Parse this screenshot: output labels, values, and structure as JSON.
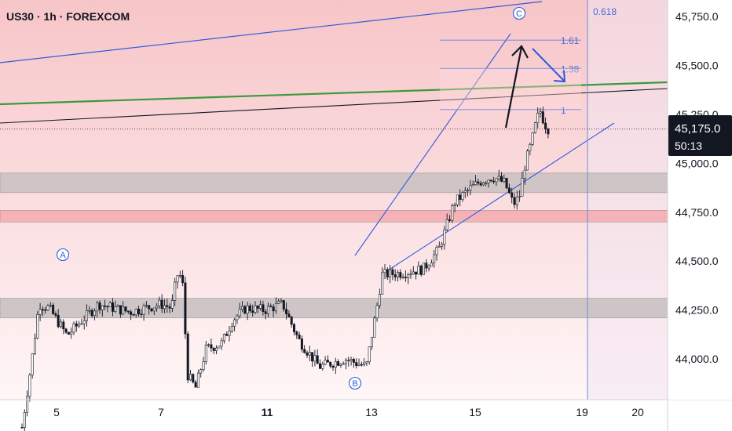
{
  "header": {
    "title": "US30 · 1h · FOREXCOM"
  },
  "chart_data": {
    "type": "candlestick",
    "symbol": "US30",
    "timeframe": "1h",
    "exchange": "FOREXCOM",
    "x_ticks": [
      {
        "day": "5",
        "bold": false
      },
      {
        "day": "7",
        "bold": false
      },
      {
        "day": "11",
        "bold": true
      },
      {
        "day": "13",
        "bold": false
      },
      {
        "day": "15",
        "bold": false
      },
      {
        "day": "19",
        "bold": false
      },
      {
        "day": "20",
        "bold": false
      }
    ],
    "y_ticks": [
      "45,750.0",
      "45,500.0",
      "45,250.0",
      "45,000.0",
      "44,750.0",
      "44,500.0",
      "44,250.0",
      "44,000.0"
    ],
    "ylim": [
      43700,
      45950
    ],
    "current_price": {
      "value": "45,175.0",
      "countdown": "50:13",
      "price": 45175
    },
    "wave_labels": [
      "A",
      "B",
      "C"
    ],
    "fib_levels": [
      {
        "label": "1.61",
        "price": 45630
      },
      {
        "label": "1.38",
        "price": 45485
      },
      {
        "label": "1",
        "price": 45275
      }
    ],
    "vertical_marker": {
      "label": "0.618"
    },
    "zones": [
      {
        "name": "resistance-zone",
        "low": 44850,
        "high": 44950,
        "color": "#c9c0c0"
      },
      {
        "name": "support-zone-red",
        "low": 44700,
        "high": 44760,
        "color": "#f5aab0"
      },
      {
        "name": "support-zone-grey",
        "low": 44210,
        "high": 44310,
        "color": "#c6c0c0"
      }
    ],
    "colors": {
      "up": "#ffffff",
      "down": "#131722",
      "trendline": "#2f5bdb",
      "green_line": "#3c9a3c",
      "background_top": "#f7c9cb",
      "price_tag": "#131722"
    },
    "price_path": [
      {
        "d": 3.7,
        "p": 43650
      },
      {
        "d": 4.0,
        "p": 43980
      },
      {
        "d": 4.3,
        "p": 44280
      },
      {
        "d": 4.7,
        "p": 44260
      },
      {
        "d": 5.2,
        "p": 44120
      },
      {
        "d": 5.8,
        "p": 44280
      },
      {
        "d": 6.4,
        "p": 44240
      },
      {
        "d": 7.0,
        "p": 44280
      },
      {
        "d": 7.4,
        "p": 44260
      },
      {
        "d": 7.6,
        "p": 44430
      },
      {
        "d": 7.8,
        "p": 44420
      },
      {
        "d": 8.0,
        "p": 43920
      },
      {
        "d": 8.3,
        "p": 43850
      },
      {
        "d": 8.7,
        "p": 44050
      },
      {
        "d": 9.3,
        "p": 44080
      },
      {
        "d": 9.7,
        "p": 44200
      },
      {
        "d": 10.2,
        "p": 44260
      },
      {
        "d": 10.9,
        "p": 44250
      },
      {
        "d": 11.3,
        "p": 44280
      },
      {
        "d": 11.6,
        "p": 44100
      },
      {
        "d": 12.0,
        "p": 43960
      },
      {
        "d": 12.5,
        "p": 44000
      },
      {
        "d": 12.9,
        "p": 43960
      },
      {
        "d": 13.1,
        "p": 44260
      },
      {
        "d": 13.2,
        "p": 44430
      },
      {
        "d": 13.6,
        "p": 44440
      },
      {
        "d": 14.0,
        "p": 44460
      },
      {
        "d": 14.3,
        "p": 44560
      },
      {
        "d": 14.6,
        "p": 44800
      },
      {
        "d": 14.9,
        "p": 44870
      },
      {
        "d": 15.2,
        "p": 44910
      },
      {
        "d": 15.6,
        "p": 44930
      },
      {
        "d": 16.0,
        "p": 44900
      },
      {
        "d": 16.3,
        "p": 44790
      },
      {
        "d": 16.5,
        "p": 44830
      },
      {
        "d": 16.7,
        "p": 45000
      },
      {
        "d": 16.9,
        "p": 45100
      },
      {
        "d": 17.1,
        "p": 45220
      },
      {
        "d": 17.25,
        "p": 45270
      },
      {
        "d": 17.45,
        "p": 45200
      },
      {
        "d": 17.6,
        "p": 45175
      }
    ]
  }
}
